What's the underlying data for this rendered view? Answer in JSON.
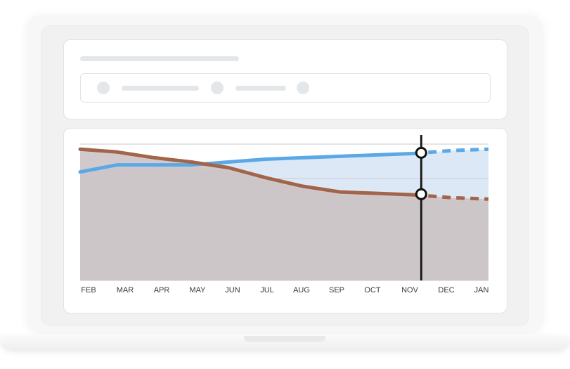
{
  "chart_data": {
    "type": "area",
    "categories": [
      "FEB",
      "MAR",
      "APR",
      "MAY",
      "JUN",
      "JUL",
      "AUG",
      "SEP",
      "OCT",
      "NOV",
      "DEC",
      "JAN"
    ],
    "ylim": [
      0,
      100
    ],
    "grid": true,
    "series": [
      {
        "color": "#5aa9e6",
        "fill": "#dde8f6",
        "values": [
          76,
          81,
          81,
          81,
          83,
          85,
          86,
          87,
          88,
          89,
          91,
          92
        ],
        "projected_from_index": 9
      },
      {
        "color": "#a2654a",
        "fill": "#cfc6c9",
        "values": [
          92,
          90,
          86,
          83,
          79,
          72,
          66,
          62,
          61,
          60,
          58,
          57
        ],
        "projected_from_index": 9
      }
    ],
    "marker_index": 9
  }
}
